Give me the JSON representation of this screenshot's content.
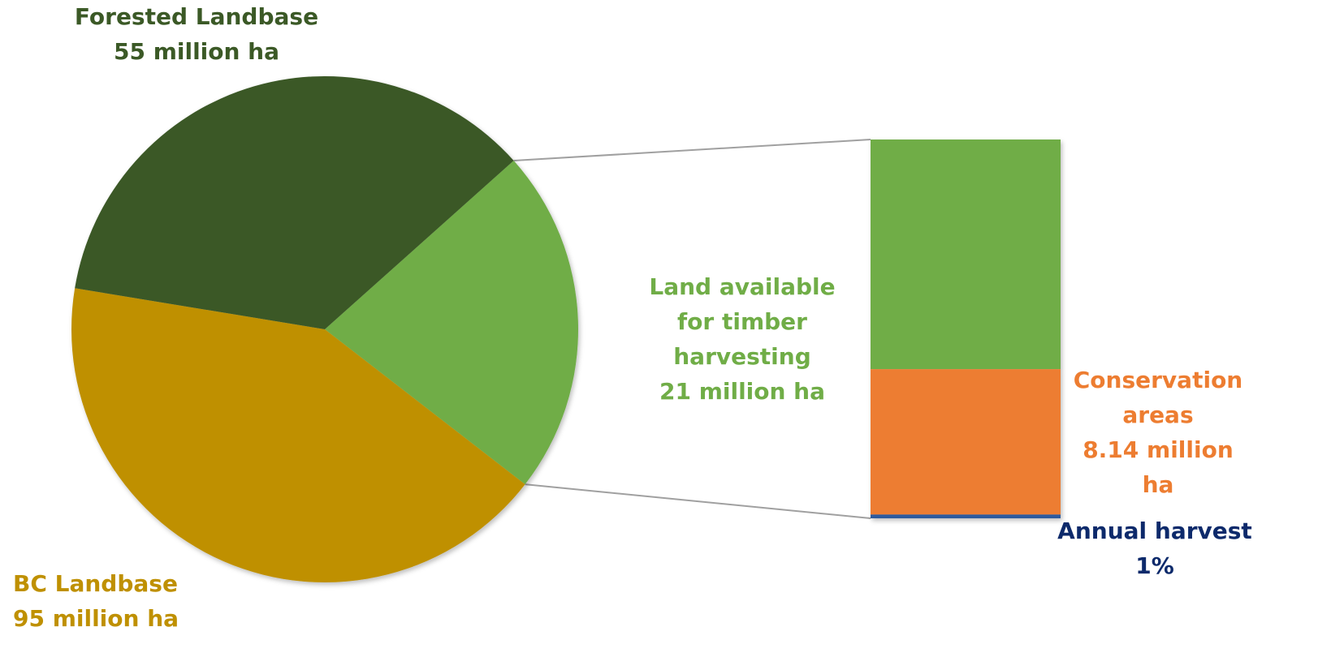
{
  "chart_data": {
    "type": "pie",
    "subtype": "bar-of-pie",
    "pie": {
      "slices": [
        {
          "key": "forested",
          "label_lines": [
            "Forested Landbase",
            "55 million ha"
          ],
          "value": 34,
          "color": "#3B5926"
        },
        {
          "key": "bc",
          "label_lines": [
            "BC Landbase",
            "95 million ha"
          ],
          "value": 40,
          "color": "#BF9000"
        },
        {
          "key": "timber",
          "label_lines": [
            "Land available",
            "for timber",
            "harvesting",
            "21 million ha"
          ],
          "value": 21,
          "color": "#70AD47"
        }
      ]
    },
    "bar": {
      "segments": [
        {
          "key": "timber_rest",
          "value": 12.86,
          "color": "#70AD47"
        },
        {
          "key": "conservation",
          "label_lines": [
            "Conservation",
            "areas",
            "8.14 million",
            "ha"
          ],
          "value": 8.14,
          "color": "#ED7D31"
        },
        {
          "key": "harvest",
          "label_lines": [
            "Annual harvest",
            "1%"
          ],
          "value": 0.21,
          "color": "#2E5A9C"
        }
      ],
      "label_colors": {
        "conservation": "#ED7D31",
        "harvest": "#0D2A6B"
      }
    },
    "connector_color": "#A0A0A0"
  }
}
